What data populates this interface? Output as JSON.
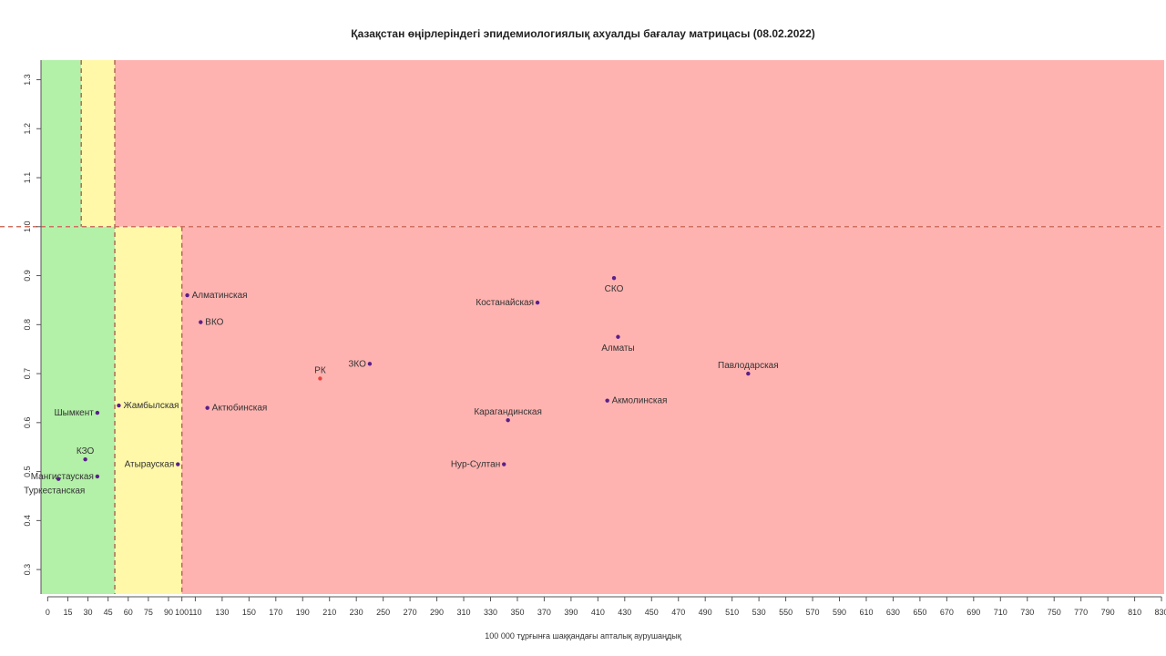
{
  "chart_data": {
    "type": "scatter",
    "title": "Қазақстан өңірлеріндегі эпидемиологиялық ахуалды бағалау матрицасы  (08.02.2022)",
    "xlabel": "100 000 тұрғынға шаққандағы апталық аурушаңдық",
    "ylabel": "",
    "xlim": [
      -5,
      832
    ],
    "ylim": [
      0.25,
      1.34
    ],
    "x_ticks": [
      0,
      15,
      30,
      45,
      60,
      75,
      90,
      100,
      110,
      130,
      150,
      170,
      190,
      210,
      230,
      250,
      270,
      290,
      310,
      330,
      350,
      370,
      390,
      410,
      430,
      450,
      470,
      490,
      510,
      530,
      550,
      570,
      590,
      610,
      630,
      650,
      670,
      690,
      710,
      730,
      750,
      770,
      790,
      810,
      830
    ],
    "y_ticks": [
      0.3,
      0.4,
      0.5,
      0.6,
      0.7,
      0.8,
      0.9,
      1.0,
      1.1,
      1.2,
      1.3
    ],
    "y_tick_labels": [
      "0.3",
      "0.4",
      "0.5",
      "0.6",
      "0.7",
      "0.8",
      "0.9",
      "1.0",
      "1.1",
      "1.2",
      "1.3"
    ],
    "grid": false,
    "zones": [
      {
        "x0": -5,
        "x1": 25,
        "y0": 1.0,
        "y1": 1.34,
        "color": "#b3f0a8"
      },
      {
        "x0": 25,
        "x1": 50,
        "y0": 1.0,
        "y1": 1.34,
        "color": "#fff8a8"
      },
      {
        "x0": 50,
        "x1": 832,
        "y0": 1.0,
        "y1": 1.34,
        "color": "#ffb3b0"
      },
      {
        "x0": -5,
        "x1": 50,
        "y0": 0.25,
        "y1": 1.0,
        "color": "#b3f0a8"
      },
      {
        "x0": 50,
        "x1": 100,
        "y0": 0.25,
        "y1": 1.0,
        "color": "#fff8a8"
      },
      {
        "x0": 100,
        "x1": 832,
        "y0": 0.25,
        "y1": 1.0,
        "color": "#ffb3b0"
      }
    ],
    "threshold_lines": [
      {
        "orientation": "vertical",
        "x": 25,
        "y0": 1.0,
        "y1": 1.34
      },
      {
        "orientation": "vertical",
        "x": 50,
        "y0": 0.25,
        "y1": 1.34
      },
      {
        "orientation": "vertical",
        "x": 100,
        "y0": 0.25,
        "y1": 1.0
      },
      {
        "orientation": "horizontal",
        "y": 1.0
      }
    ],
    "points": [
      {
        "label": "Шымкент",
        "x": 37,
        "y": 0.62,
        "anchor": "left"
      },
      {
        "label": "Жамбылская",
        "x": 53,
        "y": 0.635,
        "anchor": "right"
      },
      {
        "label": "КЗО",
        "x": 28,
        "y": 0.525,
        "anchor": "above"
      },
      {
        "label": "Мангистауская",
        "x": 37,
        "y": 0.49,
        "anchor": "left"
      },
      {
        "label": "Туркестанская",
        "x": 8,
        "y": 0.485,
        "anchor": "below-right"
      },
      {
        "label": "Атырауская",
        "x": 97,
        "y": 0.515,
        "anchor": "left"
      },
      {
        "label": "Алматинская",
        "x": 104,
        "y": 0.86,
        "anchor": "right"
      },
      {
        "label": "ВКО",
        "x": 114,
        "y": 0.805,
        "anchor": "right"
      },
      {
        "label": "Актюбинская",
        "x": 119,
        "y": 0.63,
        "anchor": "right"
      },
      {
        "label": "РК",
        "x": 203,
        "y": 0.69,
        "anchor": "above",
        "color": "#e8453c"
      },
      {
        "label": "ЗКО",
        "x": 240,
        "y": 0.72,
        "anchor": "left"
      },
      {
        "label": "Костанайская",
        "x": 365,
        "y": 0.845,
        "anchor": "left"
      },
      {
        "label": "Карагандинская",
        "x": 343,
        "y": 0.605,
        "anchor": "above"
      },
      {
        "label": "Нур-Султан",
        "x": 340,
        "y": 0.515,
        "anchor": "left"
      },
      {
        "label": "СКО",
        "x": 422,
        "y": 0.895,
        "anchor": "below"
      },
      {
        "label": "Алматы",
        "x": 425,
        "y": 0.775,
        "anchor": "below"
      },
      {
        "label": "Акмолинская",
        "x": 417,
        "y": 0.645,
        "anchor": "right"
      },
      {
        "label": "Павлодарская",
        "x": 522,
        "y": 0.7,
        "anchor": "above"
      }
    ],
    "point_color": "#5a1f8a"
  }
}
